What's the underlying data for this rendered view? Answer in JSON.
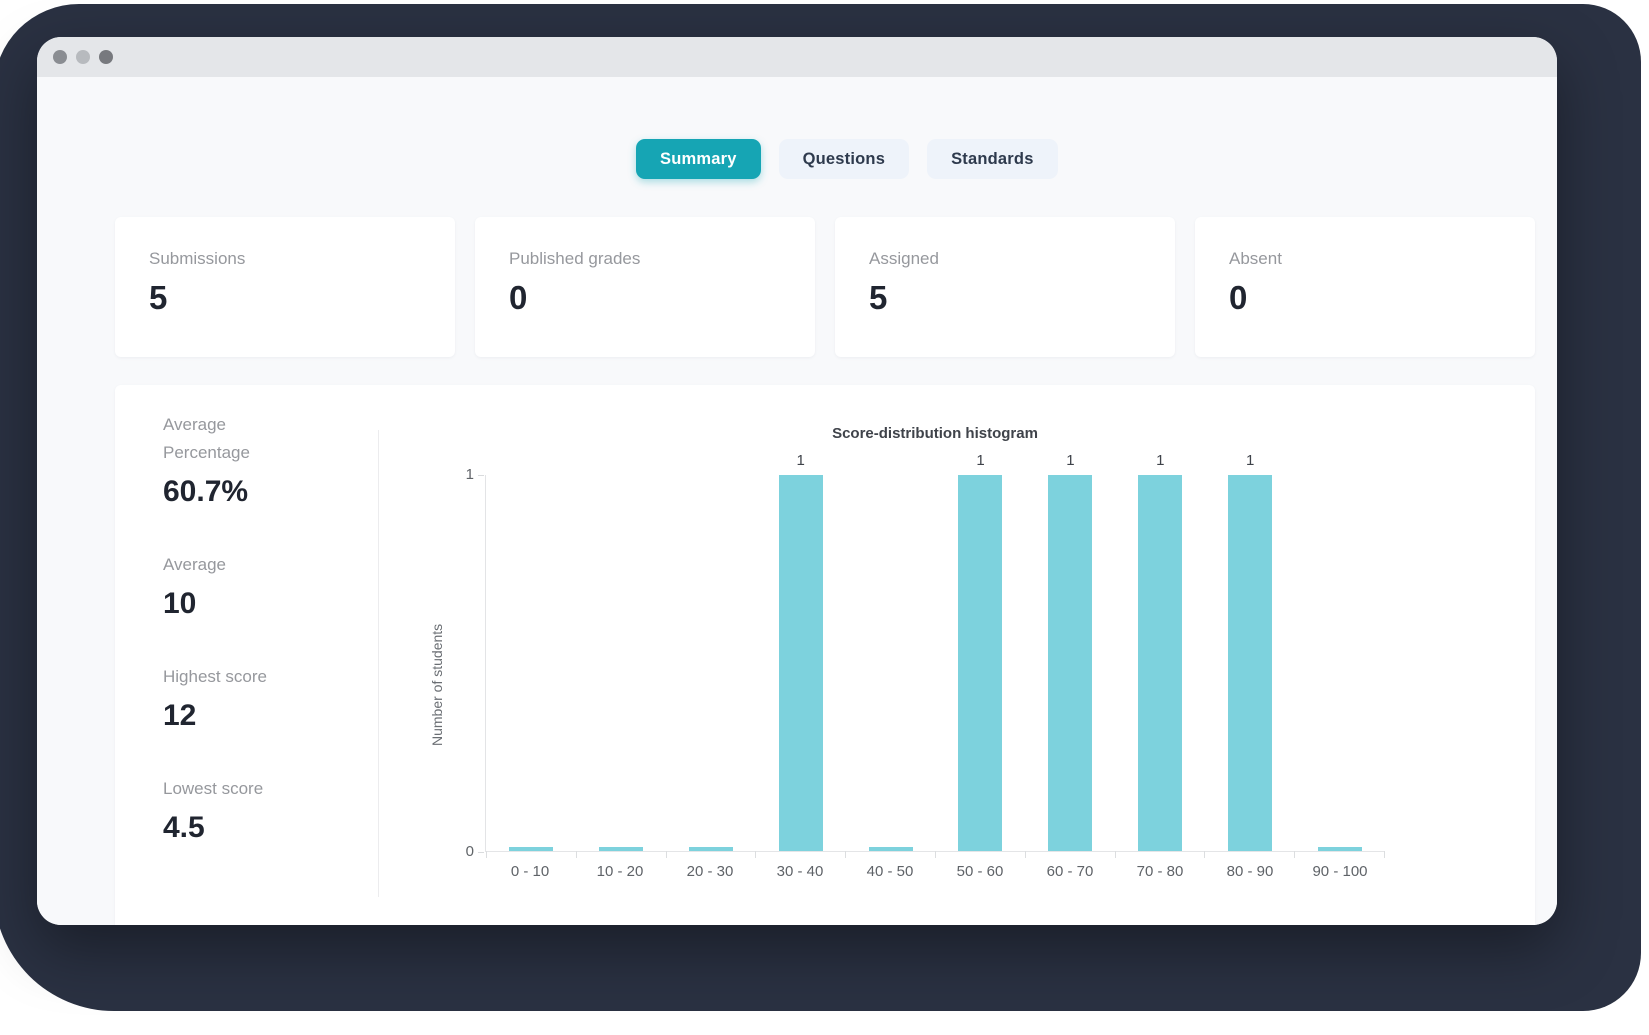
{
  "colors": {
    "accent": "#16a5b4",
    "bar": "#7dd2dd",
    "backdrop": "#2a3142"
  },
  "window": {
    "titlebar_dots": [
      "dot-gray",
      "dot-light-gray",
      "dot-dark-gray"
    ]
  },
  "tabs": [
    {
      "label": "Summary",
      "active": true
    },
    {
      "label": "Questions",
      "active": false
    },
    {
      "label": "Standards",
      "active": false
    }
  ],
  "stat_cards": [
    {
      "label": "Submissions",
      "value": "5"
    },
    {
      "label": "Published grades",
      "value": "0"
    },
    {
      "label": "Assigned",
      "value": "5"
    },
    {
      "label": "Absent",
      "value": "0"
    }
  ],
  "summary_stats": [
    {
      "label": "Average Percentage",
      "value": "60.7%"
    },
    {
      "label": "Average",
      "value": "10"
    },
    {
      "label": "Highest score",
      "value": "12"
    },
    {
      "label": "Lowest score",
      "value": "4.5"
    }
  ],
  "chart_data": {
    "type": "bar",
    "title": "Score-distribution histogram",
    "categories": [
      "0 - 10",
      "10 - 20",
      "20 - 30",
      "30 - 40",
      "40 - 50",
      "50 - 60",
      "60 - 70",
      "70 - 80",
      "80 - 90",
      "90 - 100"
    ],
    "values": [
      0,
      0,
      0,
      1,
      0,
      1,
      1,
      1,
      1,
      0
    ],
    "xlabel": "",
    "ylabel": "Number of students",
    "yticks": [
      "0",
      "1"
    ],
    "ylim": [
      0,
      1
    ],
    "grid": false,
    "legend": null,
    "bar_color": "#7dd2dd"
  }
}
